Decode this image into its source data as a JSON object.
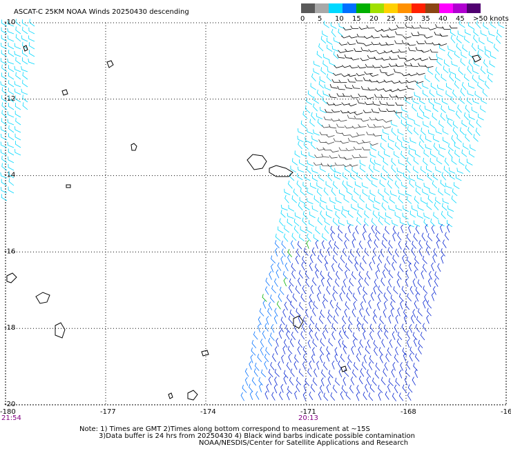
{
  "header": {
    "title": "ASCAT-C 25KM NOAA Winds 20250430 descending"
  },
  "colorbar": {
    "colors": [
      "#5a5a5a",
      "#a8a8a8",
      "#00d8ff",
      "#0070ff",
      "#00b000",
      "#a0e000",
      "#ffd000",
      "#ff9000",
      "#ff2000",
      "#8b4513",
      "#ff00ff",
      "#b000d0",
      "#500070"
    ],
    "labels": [
      "0",
      "5",
      "10",
      "15",
      "20",
      "25",
      "30",
      "35",
      "40",
      "45",
      ">50 knots"
    ]
  },
  "map": {
    "lat_labels": [
      "-10",
      "-12",
      "-14",
      "-16",
      "-18",
      "-20"
    ],
    "lon_labels": [
      "-180",
      "-177",
      "-174",
      "-171",
      "-168",
      "-16"
    ],
    "time_labels": [
      "21:54",
      "20:13"
    ]
  },
  "notes": [
    "Note: 1) Times are GMT 2)Times along bottom correspond to measurement at ~15S",
    "3)Data buffer is 24 hrs from 20250430 4) Black wind barbs indicate possible contamination",
    "NOAA/NESDIS/Center for Satellite Applications and Research"
  ]
}
